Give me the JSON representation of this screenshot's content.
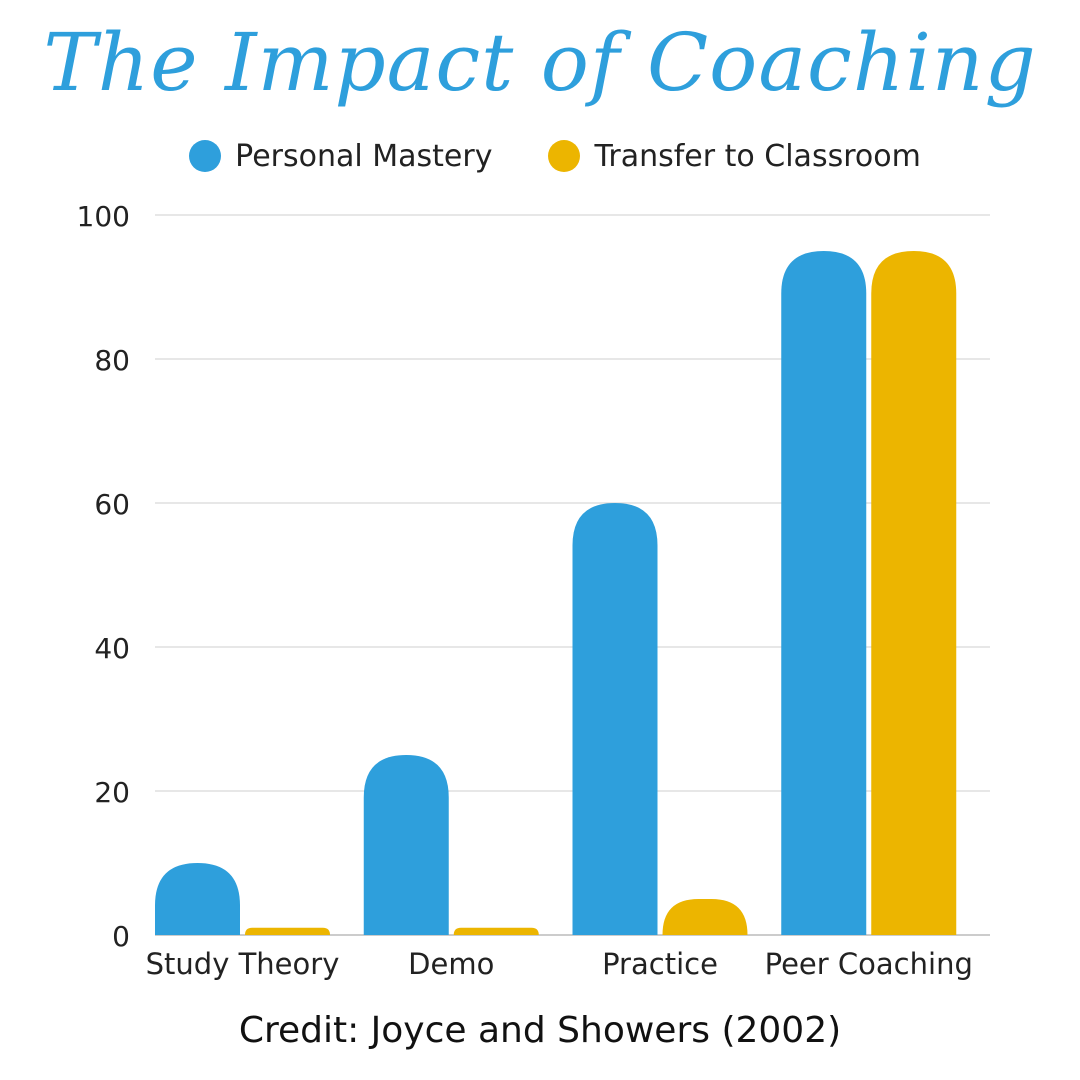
{
  "title": "The Impact of Coaching",
  "credit": "Credit: Joyce and Showers (2002)",
  "colors": {
    "personal_mastery": "#2e9fdc",
    "transfer": "#ecb500",
    "title": "#2e9fdc",
    "grid": "#cfcfcf"
  },
  "chart_data": {
    "type": "bar",
    "title": "The Impact of Coaching",
    "xlabel": "",
    "ylabel": "",
    "categories": [
      "Study Theory",
      "Demo",
      "Practice",
      "Peer Coaching"
    ],
    "series": [
      {
        "name": "Personal Mastery",
        "values": [
          10,
          25,
          60,
          95
        ]
      },
      {
        "name": "Transfer to Classroom",
        "values": [
          1,
          1,
          5,
          95
        ]
      }
    ],
    "ylim": [
      0,
      100
    ],
    "yticks": [
      0,
      20,
      40,
      60,
      80,
      100
    ],
    "grid": true,
    "legend_position": "top"
  }
}
